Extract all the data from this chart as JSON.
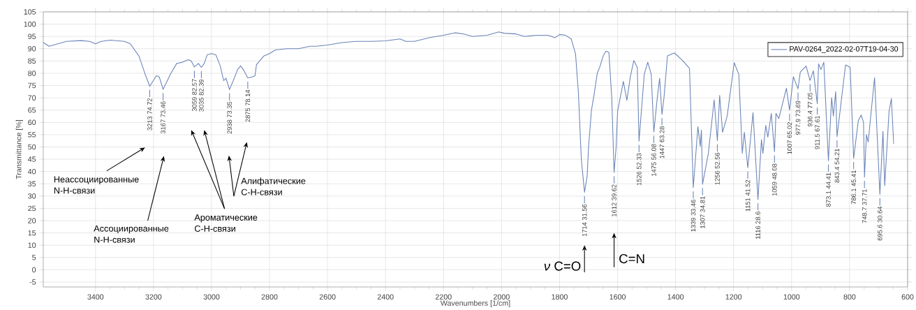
{
  "chart_data": {
    "type": "line",
    "xlabel": "Wavenumbers [1/cm]",
    "ylabel": "Transmittance [%]",
    "xlim": [
      3580,
      600
    ],
    "ylim": [
      -7,
      105
    ],
    "xticks": [
      3400,
      3200,
      3000,
      2800,
      2600,
      2400,
      2200,
      2000,
      1800,
      1600,
      1400,
      1200,
      1000,
      800,
      600
    ],
    "yticks": [
      -5,
      0,
      5,
      10,
      15,
      20,
      25,
      30,
      35,
      40,
      45,
      50,
      55,
      60,
      65,
      70,
      75,
      80,
      85,
      90,
      95,
      100,
      105
    ],
    "grid": true,
    "legend": "top right",
    "line_style": "solid",
    "series": [
      {
        "name": "PAV-0264_2022-02-07T19-04-30",
        "color": "#6a84b8",
        "x": [
          3580,
          3560,
          3500,
          3450,
          3420,
          3400,
          3380,
          3350,
          3300,
          3280,
          3250,
          3230,
          3213,
          3190,
          3180,
          3167,
          3140,
          3120,
          3100,
          3080,
          3070,
          3059,
          3045,
          3035,
          3025,
          3015,
          3000,
          2985,
          2970,
          2958,
          2950,
          2938,
          2925,
          2910,
          2900,
          2890,
          2875,
          2860,
          2850,
          2845,
          2820,
          2800,
          2780,
          2740,
          2700,
          2660,
          2640,
          2600,
          2550,
          2500,
          2450,
          2400,
          2350,
          2330,
          2300,
          2250,
          2200,
          2160,
          2130,
          2100,
          2050,
          2010,
          1990,
          1950,
          1920,
          1880,
          1840,
          1815,
          1800,
          1780,
          1760,
          1745,
          1735,
          1725,
          1714,
          1705,
          1700,
          1690,
          1680,
          1670,
          1660,
          1650,
          1640,
          1630,
          1620,
          1612,
          1605,
          1600,
          1580,
          1568,
          1556,
          1544,
          1532,
          1526,
          1508,
          1496,
          1484,
          1475,
          1464,
          1455,
          1447,
          1440,
          1428,
          1404,
          1376,
          1352,
          1339,
          1323,
          1315,
          1311,
          1307,
          1287,
          1267,
          1256,
          1248,
          1238,
          1222,
          1198,
          1182,
          1170,
          1163,
          1151,
          1133,
          1116,
          1104,
          1099,
          1089,
          1082,
          1070,
          1059,
          1054,
          1044,
          1034,
          1018,
          1007,
          994,
          977.9,
          970,
          950,
          936.4,
          925,
          911.5,
          907,
          899,
          889,
          873.1,
          862,
          856,
          848,
          843.4,
          814,
          798,
          786.1,
          770,
          760,
          752,
          748.7,
          742,
          736,
          714,
          695.6,
          685,
          679,
          664,
          656,
          648
        ],
        "values": [
          92.5,
          91,
          93,
          93.3,
          93,
          92,
          93,
          93.5,
          93,
          92,
          87,
          80,
          74.72,
          79,
          78.5,
          73.46,
          80,
          84,
          84.5,
          85.5,
          85,
          82.57,
          84,
          82.39,
          84,
          87.5,
          88,
          87.5,
          83,
          77,
          78,
          73.35,
          77,
          81.5,
          83,
          81.5,
          78.14,
          78.5,
          79,
          83.5,
          87,
          88,
          89.5,
          90,
          90,
          91,
          91,
          91.5,
          92.5,
          93,
          93,
          93.2,
          94,
          93,
          93,
          94.5,
          95.5,
          96.5,
          96,
          95,
          95.5,
          96.8,
          96.3,
          96,
          95,
          95.5,
          95.5,
          94.5,
          95.8,
          95.5,
          94,
          88,
          72,
          45,
          31.56,
          38,
          50,
          65,
          72,
          80,
          83,
          87,
          89,
          88.5,
          70,
          39.62,
          50,
          64.5,
          76.7,
          69,
          78.6,
          85.2,
          82.4,
          52.33,
          79.6,
          84.5,
          79.6,
          56.08,
          69,
          78,
          63.28,
          70,
          87.1,
          88.3,
          85.2,
          82,
          33.46,
          58.3,
          50.3,
          56.9,
          34.81,
          47.4,
          69.2,
          52.56,
          71,
          56,
          62.6,
          84.3,
          79.6,
          47.4,
          56,
          41.52,
          64,
          28.6,
          53,
          47.4,
          58.8,
          54,
          63.6,
          48.08,
          63.6,
          61.6,
          66.3,
          73.9,
          65.02,
          78.6,
          73.69,
          80.5,
          82.9,
          77.05,
          81,
          67.61,
          83.8,
          81.5,
          84.5,
          44.41,
          70.1,
          62.6,
          72.5,
          54.21,
          83.4,
          82.4,
          45.41,
          60.7,
          63,
          60,
          37.71,
          55,
          52,
          78.2,
          30.64,
          56.4,
          34.2,
          64.5,
          69.7,
          51.2
        ]
      }
    ],
    "annotations": [
      {
        "text": "3213 74.72",
        "x": 3213,
        "y": 74.72
      },
      {
        "text": "3167 73.46",
        "x": 3167,
        "y": 73.46
      },
      {
        "text": "3059 82.57",
        "x": 3059,
        "y": 82.57
      },
      {
        "text": "3035 82.39",
        "x": 3035,
        "y": 82.39
      },
      {
        "text": "2938 73.35",
        "x": 2938,
        "y": 73.35
      },
      {
        "text": "2875 78.14",
        "x": 2875,
        "y": 78.14
      },
      {
        "text": "1714 31.56",
        "x": 1714,
        "y": 31.56
      },
      {
        "text": "1612 39.62",
        "x": 1612,
        "y": 39.62
      },
      {
        "text": "1526 52.33",
        "x": 1526,
        "y": 52.33
      },
      {
        "text": "1475 56.08",
        "x": 1475,
        "y": 56.08
      },
      {
        "text": "1447 63.28",
        "x": 1447,
        "y": 63.28
      },
      {
        "text": "1339 33.46",
        "x": 1339,
        "y": 33.46
      },
      {
        "text": "1307 34.81",
        "x": 1307,
        "y": 34.81
      },
      {
        "text": "1256 52.56",
        "x": 1256,
        "y": 52.56
      },
      {
        "text": "1151 41.52",
        "x": 1151,
        "y": 41.52
      },
      {
        "text": "1116 28.6",
        "x": 1116,
        "y": 28.6
      },
      {
        "text": "1059 48.08",
        "x": 1059,
        "y": 48.08
      },
      {
        "text": "1007 65.02",
        "x": 1007,
        "y": 65.02
      },
      {
        "text": "977.9 73.69",
        "x": 977.9,
        "y": 73.69
      },
      {
        "text": "936.4 77.05",
        "x": 936.4,
        "y": 77.05
      },
      {
        "text": "911.5 67.61",
        "x": 911.5,
        "y": 67.61
      },
      {
        "text": "873.1 44.41",
        "x": 873.1,
        "y": 44.41
      },
      {
        "text": "843.4 54.21",
        "x": 843.4,
        "y": 54.21
      },
      {
        "text": "786.1 45.41",
        "x": 786.1,
        "y": 45.41
      },
      {
        "text": "748.7 37.71",
        "x": 748.7,
        "y": 37.71
      },
      {
        "text": "695.6 30.64",
        "x": 695.6,
        "y": 30.64
      },
      "Неассоциированные N-H-связи",
      "Ассоциированные N-H-связи",
      "Ароматические C-H-связи",
      "Алифатические C-H-связи",
      "*ν* C=O",
      "C=N"
    ]
  }
}
